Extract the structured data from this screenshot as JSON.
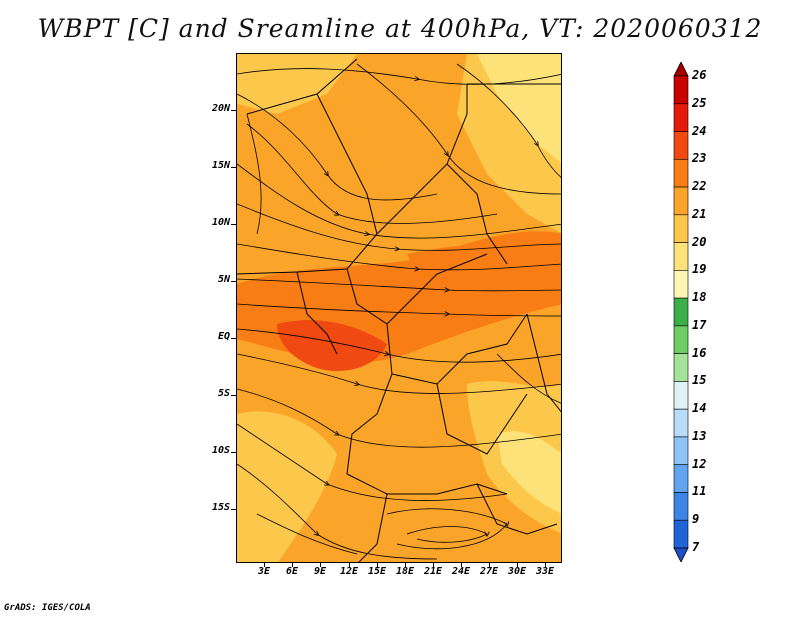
{
  "title": "WBPT [C] and Sreamline at 400hPa, VT: 2020060312",
  "footer": "GrADS: IGES/COLA",
  "map": {
    "description_type": "wet-bulb potential temperature shading with streamlines",
    "lat_labels": [
      "20N",
      "15N",
      "10N",
      "5N",
      "EQ",
      "5S",
      "10S",
      "15S"
    ],
    "lon_labels": [
      "3E",
      "6E",
      "9E",
      "12E",
      "15E",
      "18E",
      "21E",
      "24E",
      "27E",
      "30E",
      "33E"
    ]
  },
  "colorbar": {
    "labels": [
      "26",
      "25",
      "24",
      "23",
      "22",
      "21",
      "20",
      "19",
      "18",
      "17",
      "16",
      "15",
      "14",
      "13",
      "12",
      "11",
      "9",
      "7"
    ],
    "colors": [
      "#a50000",
      "#c80000",
      "#e41a0a",
      "#f04a12",
      "#f87d14",
      "#faa52a",
      "#fcc84c",
      "#fde27a",
      "#fdf5b4",
      "#3bb04a",
      "#6fcd68",
      "#a6e39a",
      "#dff3f6",
      "#b9dcf8",
      "#8fc2f5",
      "#62a4ef",
      "#3d84e6",
      "#2064d8",
      "#1f4fc8"
    ]
  }
}
